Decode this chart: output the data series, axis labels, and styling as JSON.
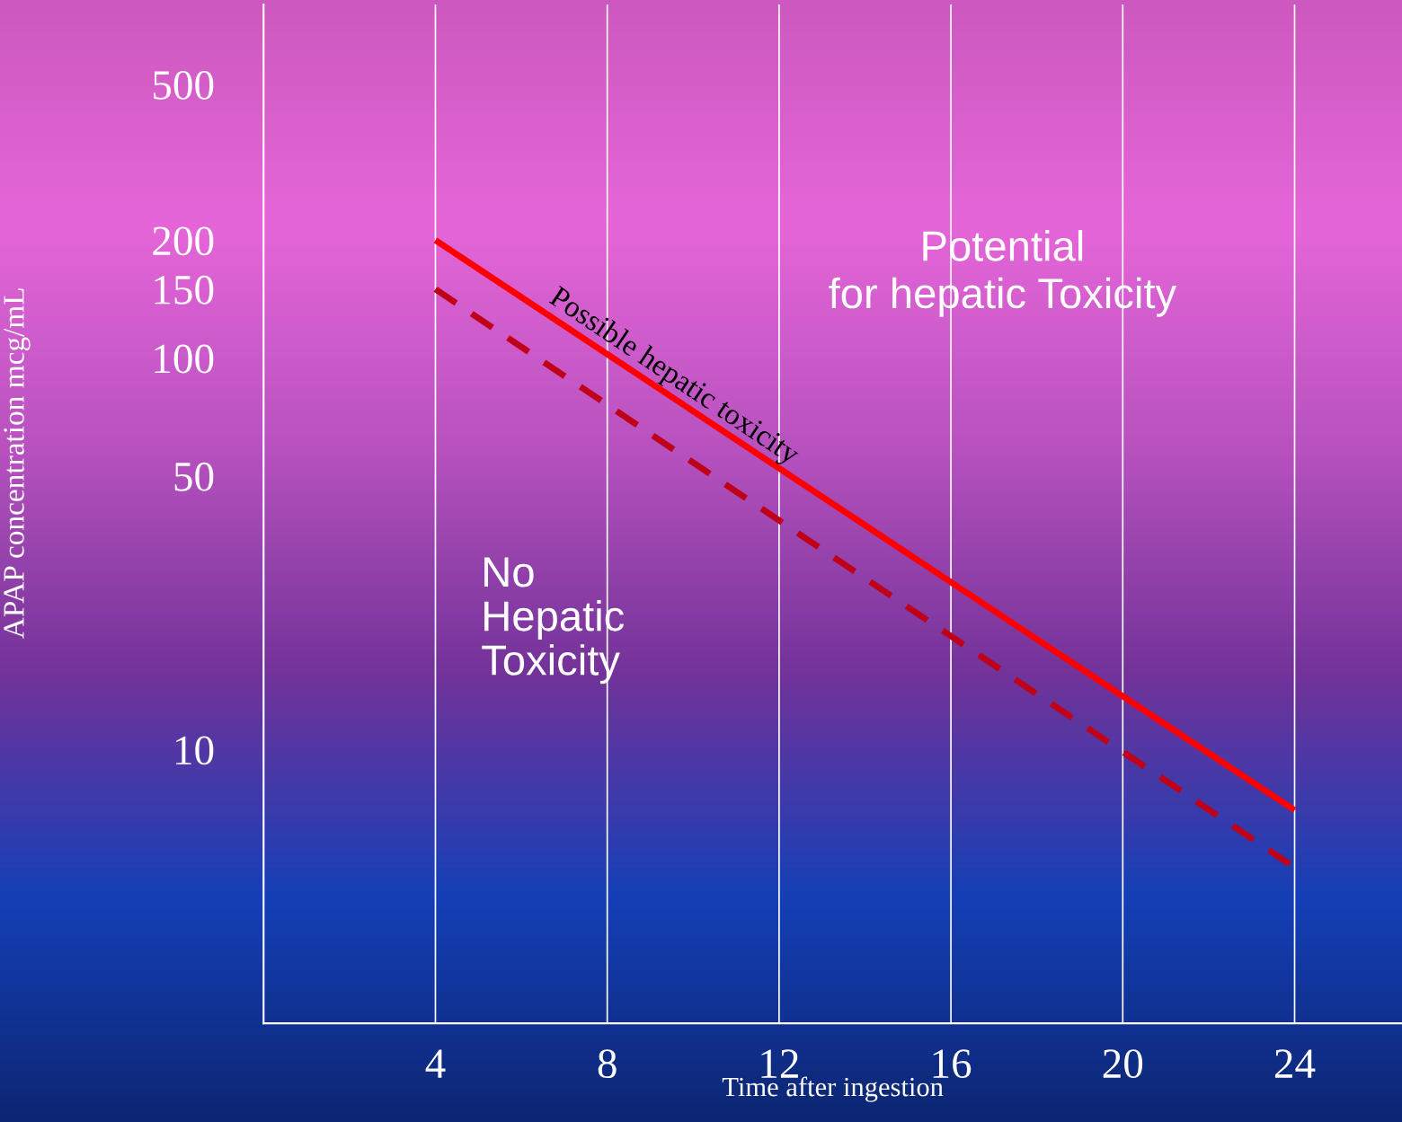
{
  "chart_data": {
    "type": "line",
    "xlabel": "Time after ingestion",
    "ylabel": "APAP concentration mcg/mL",
    "x": [
      4,
      24
    ],
    "series": [
      {
        "color": "#ff0000",
        "values": [
          200,
          7
        ],
        "line_style": "solid"
      },
      {
        "color": "#c00018",
        "values": [
          150,
          5
        ],
        "line_style": "dashed"
      }
    ],
    "log": "y",
    "xlim": [
      0,
      26.5
    ],
    "xticks": [
      4,
      8,
      12,
      16,
      20,
      24
    ],
    "ylim": [
      2,
      800
    ],
    "yticks": [
      10,
      50,
      100,
      150,
      200,
      500
    ],
    "grid": "x",
    "legend": false,
    "annotations": [
      "Possible hepatic toxicity",
      "Potential\nfor hepatic Toxicity",
      "No\nHepatic\nToxicity"
    ]
  }
}
